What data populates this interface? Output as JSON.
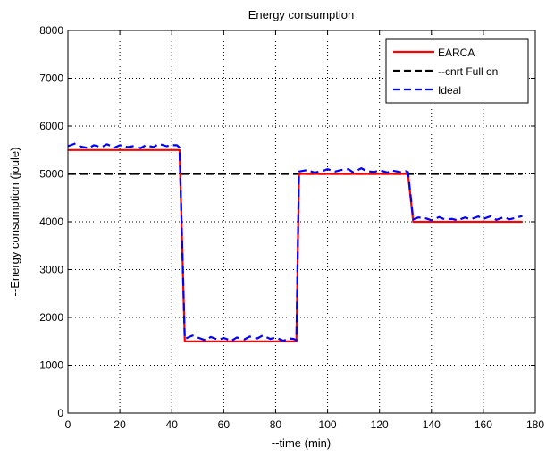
{
  "chart_data": {
    "type": "line",
    "title": "Energy consumption",
    "xlabel": "--time (min)",
    "ylabel": "--Energy consumption (joule)",
    "xlim": [
      0,
      180
    ],
    "ylim": [
      0,
      8000
    ],
    "xticks": [
      0,
      20,
      40,
      60,
      80,
      100,
      120,
      140,
      160,
      180
    ],
    "yticks": [
      0,
      1000,
      2000,
      3000,
      4000,
      5000,
      6000,
      7000,
      8000
    ],
    "grid": true,
    "legend_position": "top-right",
    "series": [
      {
        "name": "EARCA",
        "color": "#ff0000",
        "style": "solid",
        "x": [
          0,
          43,
          45,
          88,
          89,
          131,
          133,
          175
        ],
        "y": [
          5500,
          5500,
          1500,
          1500,
          5000,
          5000,
          4000,
          4000
        ]
      },
      {
        "name": "--cnrt Full on",
        "color": "#000000",
        "style": "dashed",
        "x": [
          0,
          175
        ],
        "y": [
          5000,
          5000
        ]
      },
      {
        "name": "Ideal",
        "color": "#0000ff",
        "style": "dashed",
        "x": [
          0,
          3,
          5,
          8,
          10,
          13,
          15,
          18,
          20,
          23,
          25,
          28,
          30,
          33,
          35,
          38,
          40,
          42,
          43,
          45,
          48,
          50,
          53,
          55,
          58,
          60,
          63,
          65,
          68,
          70,
          73,
          75,
          78,
          80,
          83,
          85,
          87,
          88,
          89,
          92,
          95,
          98,
          100,
          103,
          105,
          108,
          110,
          113,
          115,
          118,
          120,
          123,
          125,
          128,
          130,
          131,
          133,
          135,
          138,
          140,
          143,
          145,
          148,
          150,
          153,
          155,
          158,
          160,
          163,
          165,
          168,
          170,
          173,
          175
        ],
        "y": [
          5580,
          5640,
          5570,
          5540,
          5600,
          5560,
          5620,
          5550,
          5600,
          5560,
          5580,
          5540,
          5600,
          5560,
          5630,
          5580,
          5600,
          5600,
          5550,
          1550,
          1620,
          1580,
          1520,
          1590,
          1530,
          1570,
          1510,
          1580,
          1540,
          1600,
          1560,
          1620,
          1550,
          1580,
          1510,
          1560,
          1550,
          1520,
          5050,
          5080,
          5030,
          5060,
          5100,
          5050,
          5080,
          5100,
          5030,
          5120,
          5060,
          5040,
          5080,
          5030,
          5070,
          5040,
          5060,
          5040,
          4050,
          4090,
          4070,
          4030,
          4100,
          4050,
          4060,
          4030,
          4090,
          4050,
          4110,
          4060,
          4120,
          4040,
          4100,
          4050,
          4090,
          4120
        ]
      }
    ]
  }
}
